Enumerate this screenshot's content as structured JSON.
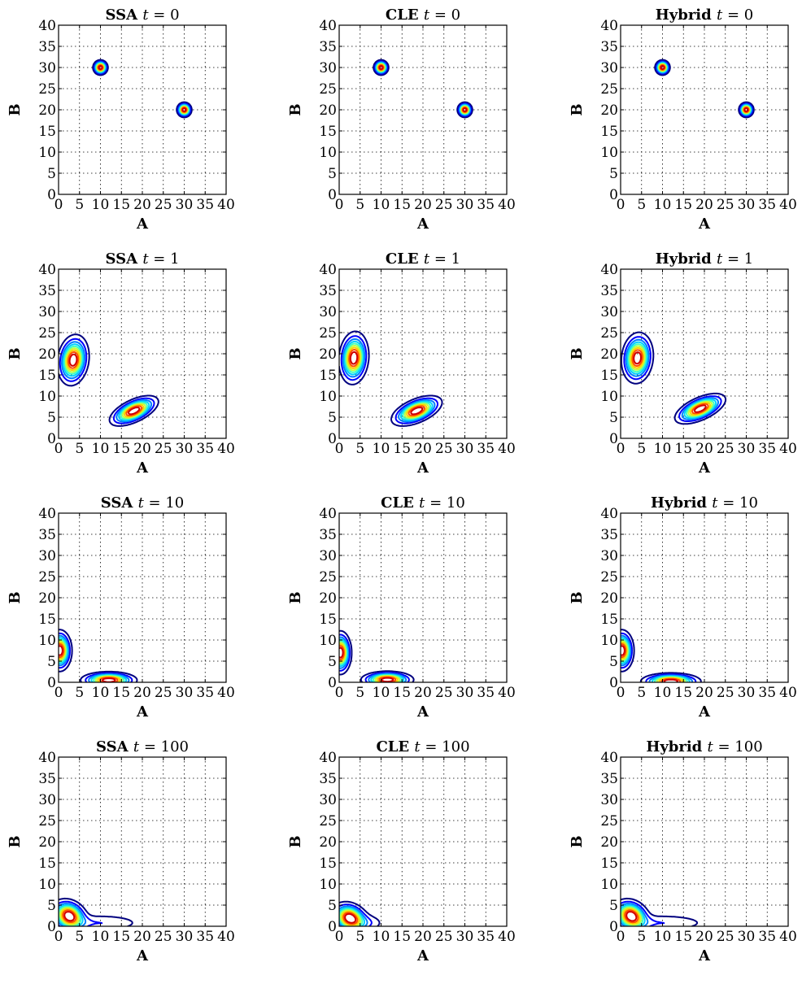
{
  "figure": {
    "layout": {
      "rows": 4,
      "cols": 3
    },
    "row_times": [
      "0",
      "1",
      "10",
      "100"
    ],
    "col_methods": [
      "SSA",
      "CLE",
      "Hybrid"
    ],
    "contour_colors": [
      "#00007f",
      "#0000ff",
      "#007fff",
      "#00d0ff",
      "#40ffbf",
      "#bfff40",
      "#ffd000",
      "#ff5000",
      "#d00000"
    ]
  },
  "chart_data": [
    {
      "type": "contour",
      "title_method": "SSA",
      "title_eq": "t = 0",
      "xlabel": "A",
      "ylabel": "B",
      "xlim": [
        0,
        40
      ],
      "ylim": [
        0,
        40
      ],
      "xticks": [
        "0",
        "5",
        "10",
        "15",
        "20",
        "25",
        "30",
        "35",
        "40"
      ],
      "yticks": [
        "0",
        "5",
        "10",
        "15",
        "20",
        "25",
        "30",
        "35",
        "40"
      ],
      "grid": true,
      "peaks": [
        {
          "x": 10,
          "y": 30,
          "sx": 0.8,
          "sy": 0.8,
          "rho": 0
        },
        {
          "x": 30,
          "y": 20,
          "sx": 0.8,
          "sy": 0.8,
          "rho": 0
        }
      ]
    },
    {
      "type": "contour",
      "title_method": "CLE",
      "title_eq": "t = 0",
      "xlabel": "A",
      "ylabel": "B",
      "xlim": [
        0,
        40
      ],
      "ylim": [
        0,
        40
      ],
      "xticks": [
        "0",
        "5",
        "10",
        "15",
        "20",
        "25",
        "30",
        "35",
        "40"
      ],
      "yticks": [
        "0",
        "5",
        "10",
        "15",
        "20",
        "25",
        "30",
        "35",
        "40"
      ],
      "grid": true,
      "peaks": [
        {
          "x": 10,
          "y": 30,
          "sx": 0.8,
          "sy": 0.8,
          "rho": 0
        },
        {
          "x": 30,
          "y": 20,
          "sx": 0.8,
          "sy": 0.8,
          "rho": 0
        }
      ]
    },
    {
      "type": "contour",
      "title_method": "Hybrid",
      "title_eq": "t = 0",
      "xlabel": "A",
      "ylabel": "B",
      "xlim": [
        0,
        40
      ],
      "ylim": [
        0,
        40
      ],
      "xticks": [
        "0",
        "5",
        "10",
        "15",
        "20",
        "25",
        "30",
        "35",
        "40"
      ],
      "yticks": [
        "0",
        "5",
        "10",
        "15",
        "20",
        "25",
        "30",
        "35",
        "40"
      ],
      "grid": true,
      "peaks": [
        {
          "x": 10,
          "y": 30,
          "sx": 0.8,
          "sy": 0.8,
          "rho": 0
        },
        {
          "x": 30,
          "y": 20,
          "sx": 0.8,
          "sy": 0.8,
          "rho": 0
        }
      ]
    },
    {
      "type": "contour",
      "title_method": "SSA",
      "title_eq": "t = 1",
      "xlabel": "A",
      "ylabel": "B",
      "xlim": [
        0,
        40
      ],
      "ylim": [
        0,
        40
      ],
      "xticks": [
        "0",
        "5",
        "10",
        "15",
        "20",
        "25",
        "30",
        "35",
        "40"
      ],
      "yticks": [
        "0",
        "5",
        "10",
        "15",
        "20",
        "25",
        "30",
        "35",
        "40"
      ],
      "grid": true,
      "peaks": [
        {
          "x": 3.5,
          "y": 18.5,
          "sx": 1.7,
          "sy": 2.7,
          "rho": 0.15
        },
        {
          "x": 18,
          "y": 6.5,
          "sx": 2.6,
          "sy": 1.6,
          "rho": 0.6
        }
      ]
    },
    {
      "type": "contour",
      "title_method": "CLE",
      "title_eq": "t = 1",
      "xlabel": "A",
      "ylabel": "B",
      "xlim": [
        0,
        40
      ],
      "ylim": [
        0,
        40
      ],
      "xticks": [
        "0",
        "5",
        "10",
        "15",
        "20",
        "25",
        "30",
        "35",
        "40"
      ],
      "yticks": [
        "0",
        "5",
        "10",
        "15",
        "20",
        "25",
        "30",
        "35",
        "40"
      ],
      "grid": true,
      "peaks": [
        {
          "x": 3.5,
          "y": 19,
          "sx": 1.6,
          "sy": 2.8,
          "rho": 0.1
        },
        {
          "x": 18.5,
          "y": 6.5,
          "sx": 2.7,
          "sy": 1.6,
          "rho": 0.55
        }
      ]
    },
    {
      "type": "contour",
      "title_method": "Hybrid",
      "title_eq": "t = 1",
      "xlabel": "A",
      "ylabel": "B",
      "xlim": [
        0,
        40
      ],
      "ylim": [
        0,
        40
      ],
      "xticks": [
        "0",
        "5",
        "10",
        "15",
        "20",
        "25",
        "30",
        "35",
        "40"
      ],
      "yticks": [
        "0",
        "5",
        "10",
        "15",
        "20",
        "25",
        "30",
        "35",
        "40"
      ],
      "grid": true,
      "peaks": [
        {
          "x": 4,
          "y": 19,
          "sx": 1.7,
          "sy": 2.7,
          "rho": 0.1
        },
        {
          "x": 19,
          "y": 7,
          "sx": 2.7,
          "sy": 1.6,
          "rho": 0.6
        }
      ]
    },
    {
      "type": "contour",
      "title_method": "SSA",
      "title_eq": "t = 10",
      "xlabel": "A",
      "ylabel": "B",
      "xlim": [
        0,
        40
      ],
      "ylim": [
        0,
        40
      ],
      "xticks": [
        "0",
        "5",
        "10",
        "15",
        "20",
        "25",
        "30",
        "35",
        "40"
      ],
      "yticks": [
        "0",
        "5",
        "10",
        "15",
        "20",
        "25",
        "30",
        "35",
        "40"
      ],
      "grid": true,
      "peaks": [
        {
          "x": 0.3,
          "y": 7.5,
          "sx": 1.3,
          "sy": 2.2,
          "rho": 0
        },
        {
          "x": 12,
          "y": 0.5,
          "sx": 3.0,
          "sy": 0.9,
          "rho": 0
        }
      ]
    },
    {
      "type": "contour",
      "title_method": "CLE",
      "title_eq": "t = 10",
      "xlabel": "A",
      "ylabel": "B",
      "xlim": [
        0,
        40
      ],
      "ylim": [
        0,
        40
      ],
      "xticks": [
        "0",
        "5",
        "10",
        "15",
        "20",
        "25",
        "30",
        "35",
        "40"
      ],
      "yticks": [
        "0",
        "5",
        "10",
        "15",
        "20",
        "25",
        "30",
        "35",
        "40"
      ],
      "grid": true,
      "peaks": [
        {
          "x": 0.3,
          "y": 7,
          "sx": 1.2,
          "sy": 2.3,
          "rho": 0
        },
        {
          "x": 11.5,
          "y": 0.6,
          "sx": 2.8,
          "sy": 0.9,
          "rho": 0
        }
      ]
    },
    {
      "type": "contour",
      "title_method": "Hybrid",
      "title_eq": "t = 10",
      "xlabel": "A",
      "ylabel": "B",
      "xlim": [
        0,
        40
      ],
      "ylim": [
        0,
        40
      ],
      "xticks": [
        "0",
        "5",
        "10",
        "15",
        "20",
        "25",
        "30",
        "35",
        "40"
      ],
      "yticks": [
        "0",
        "5",
        "10",
        "15",
        "20",
        "25",
        "30",
        "35",
        "40"
      ],
      "grid": true,
      "peaks": [
        {
          "x": 0.3,
          "y": 7.5,
          "sx": 1.3,
          "sy": 2.2,
          "rho": 0
        },
        {
          "x": 12,
          "y": 0.2,
          "sx": 3.2,
          "sy": 0.9,
          "rho": 0
        }
      ]
    },
    {
      "type": "contour",
      "title_method": "SSA",
      "title_eq": "t = 100",
      "xlabel": "A",
      "ylabel": "B",
      "xlim": [
        0,
        40
      ],
      "ylim": [
        0,
        40
      ],
      "xticks": [
        "0",
        "5",
        "10",
        "15",
        "20",
        "25",
        "30",
        "35",
        "40"
      ],
      "yticks": [
        "0",
        "5",
        "10",
        "15",
        "20",
        "25",
        "30",
        "35",
        "40"
      ],
      "grid": true,
      "peaks": [
        {
          "x": 2.5,
          "y": 2.5,
          "sx": 2.0,
          "sy": 1.8,
          "rho": -0.2
        },
        {
          "x": 10,
          "y": 0.8,
          "sx": 6.0,
          "sy": 1.2,
          "rho": 0
        }
      ],
      "weights": [
        1,
        0.18
      ]
    },
    {
      "type": "contour",
      "title_method": "CLE",
      "title_eq": "t = 100",
      "xlabel": "A",
      "ylabel": "B",
      "xlim": [
        0,
        40
      ],
      "ylim": [
        0,
        40
      ],
      "xticks": [
        "0",
        "5",
        "10",
        "15",
        "20",
        "25",
        "30",
        "35",
        "40"
      ],
      "yticks": [
        "0",
        "5",
        "10",
        "15",
        "20",
        "25",
        "30",
        "35",
        "40"
      ],
      "grid": true,
      "peaks": [
        {
          "x": 2.5,
          "y": 2.0,
          "sx": 2.0,
          "sy": 1.7,
          "rho": -0.2
        },
        {
          "x": 6,
          "y": 0.8,
          "sx": 2.8,
          "sy": 1.2,
          "rho": 0
        }
      ],
      "weights": [
        1,
        0.18
      ]
    },
    {
      "type": "contour",
      "title_method": "Hybrid",
      "title_eq": "t = 100",
      "xlabel": "A",
      "ylabel": "B",
      "xlim": [
        0,
        40
      ],
      "ylim": [
        0,
        40
      ],
      "xticks": [
        "0",
        "5",
        "10",
        "15",
        "20",
        "25",
        "30",
        "35",
        "40"
      ],
      "yticks": [
        "0",
        "5",
        "10",
        "15",
        "20",
        "25",
        "30",
        "35",
        "40"
      ],
      "grid": true,
      "peaks": [
        {
          "x": 2.5,
          "y": 2.5,
          "sx": 2.0,
          "sy": 1.8,
          "rho": -0.2
        },
        {
          "x": 10,
          "y": 0.8,
          "sx": 6.5,
          "sy": 1.2,
          "rho": 0
        }
      ],
      "weights": [
        1,
        0.18
      ]
    }
  ]
}
